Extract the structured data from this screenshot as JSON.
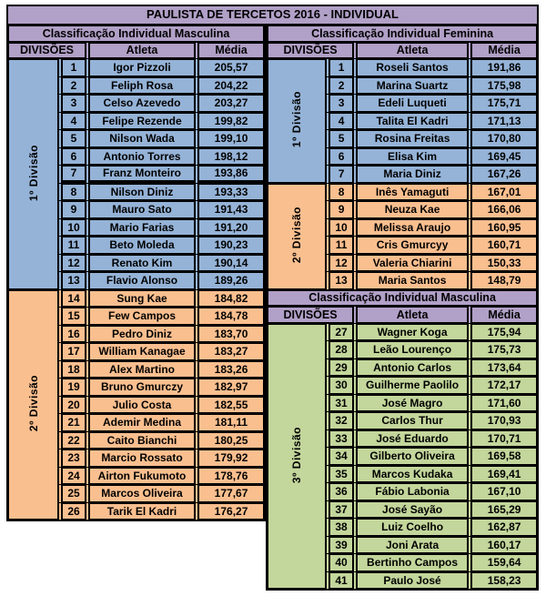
{
  "title": "PAULISTA DE TERCETOS 2016 - INDIVIDUAL",
  "columns": {
    "divisions": "DIVISÕES",
    "athlete": "Atleta",
    "average": "Média"
  },
  "colors": {
    "header_purple": "#b1a0c7",
    "division1_blue": "#95b3d7",
    "division2_orange": "#fabf8f",
    "division3_green": "#c3d69b",
    "border": "#000000",
    "page_background": "#ffffff"
  },
  "row_format": [
    "position",
    "athlete",
    "average"
  ],
  "tables": {
    "left": {
      "sections": [
        {
          "header": "Classificação Individual Masculina",
          "groups": [
            {
              "division": "1º Divisão",
              "color_key": "blue",
              "thick_border_after_pos": 7,
              "rows": [
                [
                  1,
                  "Igor Pizzoli",
                  "205,57"
                ],
                [
                  2,
                  "Feliph Rosa",
                  "204,22"
                ],
                [
                  3,
                  "Celso Azevedo",
                  "203,27"
                ],
                [
                  4,
                  "Felipe Rezende",
                  "199,82"
                ],
                [
                  5,
                  "Nilson Wada",
                  "199,10"
                ],
                [
                  6,
                  "Antonio Torres",
                  "198,12"
                ],
                [
                  7,
                  "Franz Monteiro",
                  "193,86"
                ],
                [
                  8,
                  "Nilson Diniz",
                  "193,33"
                ],
                [
                  9,
                  "Mauro Sato",
                  "191,43"
                ],
                [
                  10,
                  "Mario Farias",
                  "191,20"
                ],
                [
                  11,
                  "Beto Moleda",
                  "190,23"
                ],
                [
                  12,
                  "Renato Kim",
                  "190,14"
                ],
                [
                  13,
                  "Flavio Alonso",
                  "189,26"
                ]
              ]
            },
            {
              "division": "2º Divisão",
              "color_key": "orange",
              "rows": [
                [
                  14,
                  "Sung Kae",
                  "184,82"
                ],
                [
                  15,
                  "Few Campos",
                  "184,78"
                ],
                [
                  16,
                  "Pedro Diniz",
                  "183,70"
                ],
                [
                  17,
                  "William Kanagae",
                  "183,27"
                ],
                [
                  18,
                  "Alex Martino",
                  "183,26"
                ],
                [
                  19,
                  "Bruno Gmurczy",
                  "182,97"
                ],
                [
                  20,
                  "Julio Costa",
                  "182,55"
                ],
                [
                  21,
                  "Ademir Medina",
                  "181,11"
                ],
                [
                  22,
                  "Caito Bianchi",
                  "180,25"
                ],
                [
                  23,
                  "Marcio Rossato",
                  "179,92"
                ],
                [
                  24,
                  "Airton Fukumoto",
                  "178,76"
                ],
                [
                  25,
                  "Marcos Oliveira",
                  "177,67"
                ],
                [
                  26,
                  "Tarik El Kadri",
                  "176,27"
                ]
              ]
            }
          ]
        }
      ]
    },
    "right": {
      "sections": [
        {
          "header": "Classificação Individual Feminina",
          "groups": [
            {
              "division": "1º Divisão",
              "color_key": "blue",
              "rows": [
                [
                  1,
                  "Roseli Santos",
                  "191,86"
                ],
                [
                  2,
                  "Marina Suartz",
                  "175,98"
                ],
                [
                  3,
                  "Edeli Luqueti",
                  "175,71"
                ],
                [
                  4,
                  "Talita El Kadri",
                  "171,13"
                ],
                [
                  5,
                  "Rosina Freitas",
                  "170,80"
                ],
                [
                  6,
                  "Elisa Kim",
                  "169,45"
                ],
                [
                  7,
                  "Maria Diniz",
                  "167,26"
                ]
              ]
            },
            {
              "division": "2º Divisão",
              "color_key": "orange",
              "rows": [
                [
                  8,
                  "Inês Yamaguti",
                  "167,01"
                ],
                [
                  9,
                  "Neuza Kae",
                  "166,06"
                ],
                [
                  10,
                  "Melissa Araujo",
                  "160,95"
                ],
                [
                  11,
                  "Cris Gmurcyy",
                  "160,71"
                ],
                [
                  12,
                  "Valeria Chiarini",
                  "150,33"
                ],
                [
                  13,
                  "Maria Santos",
                  "148,79"
                ]
              ]
            }
          ]
        },
        {
          "header": "Classificação Individual Masculina",
          "groups": [
            {
              "division": "3º Divisão",
              "color_key": "green",
              "rows": [
                [
                  27,
                  "Wagner Koga",
                  "175,94"
                ],
                [
                  28,
                  "Leão Lourenço",
                  "175,73"
                ],
                [
                  29,
                  "Antonio Carlos",
                  "173,64"
                ],
                [
                  30,
                  "Guilherme Paolilo",
                  "172,17"
                ],
                [
                  31,
                  "José Magro",
                  "171,60"
                ],
                [
                  32,
                  "Carlos Thur",
                  "170,93"
                ],
                [
                  33,
                  "José Eduardo",
                  "170,71"
                ],
                [
                  34,
                  "Gilberto Oliveira",
                  "169,58"
                ],
                [
                  35,
                  "Marcos Kudaka",
                  "169,41"
                ],
                [
                  36,
                  "Fábio Labonia",
                  "167,10"
                ],
                [
                  37,
                  "José Sayão",
                  "165,29"
                ],
                [
                  38,
                  "Luiz Coelho",
                  "162,87"
                ],
                [
                  39,
                  "Joni Arata",
                  "160,17"
                ],
                [
                  40,
                  "Bertinho Campos",
                  "159,64"
                ],
                [
                  41,
                  "Paulo José",
                  "158,23"
                ]
              ]
            }
          ]
        }
      ]
    }
  }
}
